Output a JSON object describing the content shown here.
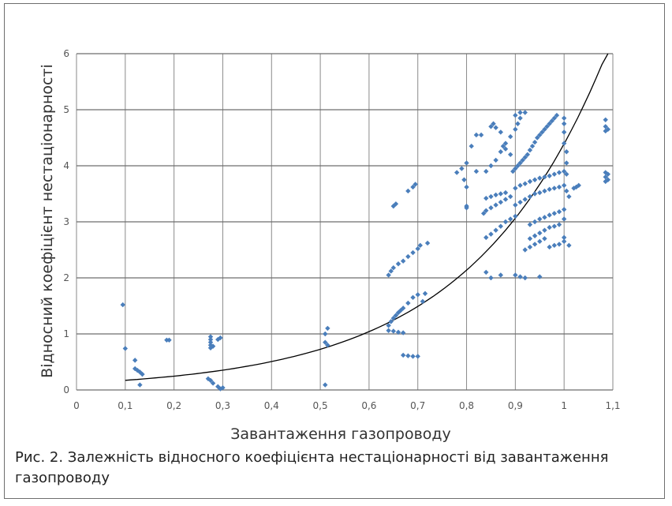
{
  "figure": {
    "caption": "Рис. 2. Залежність відносного коефіцієнта нестаціонарності від завантаження газопроводу"
  },
  "colors": {
    "points": "#4a7ebb",
    "curve": "#000000",
    "grid": "#6e6e6e"
  },
  "chart_data": {
    "type": "scatter",
    "xlabel": "Завантаження газопроводу",
    "ylabel": "Відносний коефіцієнт нестаціонарності",
    "xlim": [
      0,
      1.1
    ],
    "ylim": [
      0,
      6
    ],
    "grid": true,
    "x_ticks": [
      "0",
      "0,1",
      "0,2",
      "0,3",
      "0,4",
      "0,5",
      "0,6",
      "0,7",
      "0,8",
      "0,9",
      "1",
      "1,1"
    ],
    "y_ticks": [
      "0",
      "1",
      "2",
      "3",
      "4",
      "5",
      "6"
    ],
    "points": [
      [
        0.095,
        1.52
      ],
      [
        0.1,
        0.74
      ],
      [
        0.12,
        0.53
      ],
      [
        0.12,
        0.38
      ],
      [
        0.125,
        0.35
      ],
      [
        0.13,
        0.32
      ],
      [
        0.13,
        0.09
      ],
      [
        0.135,
        0.28
      ],
      [
        0.185,
        0.89
      ],
      [
        0.19,
        0.89
      ],
      [
        0.27,
        0.2
      ],
      [
        0.275,
        0.17
      ],
      [
        0.28,
        0.12
      ],
      [
        0.275,
        0.95
      ],
      [
        0.275,
        0.9
      ],
      [
        0.275,
        0.85
      ],
      [
        0.275,
        0.8
      ],
      [
        0.275,
        0.75
      ],
      [
        0.28,
        0.78
      ],
      [
        0.29,
        0.9
      ],
      [
        0.295,
        0.93
      ],
      [
        0.29,
        0.06
      ],
      [
        0.295,
        0.02
      ],
      [
        0.3,
        0.04
      ],
      [
        0.51,
        0.09
      ],
      [
        0.51,
        0.85
      ],
      [
        0.51,
        1.0
      ],
      [
        0.515,
        0.8
      ],
      [
        0.515,
        1.1
      ],
      [
        0.64,
        1.06
      ],
      [
        0.64,
        1.15
      ],
      [
        0.645,
        1.22
      ],
      [
        0.65,
        1.28
      ],
      [
        0.655,
        1.33
      ],
      [
        0.66,
        1.38
      ],
      [
        0.665,
        1.42
      ],
      [
        0.67,
        1.46
      ],
      [
        0.68,
        1.55
      ],
      [
        0.69,
        1.65
      ],
      [
        0.7,
        1.7
      ],
      [
        0.65,
        1.05
      ],
      [
        0.66,
        1.03
      ],
      [
        0.67,
        1.02
      ],
      [
        0.67,
        0.62
      ],
      [
        0.68,
        0.61
      ],
      [
        0.69,
        0.6
      ],
      [
        0.7,
        0.6
      ],
      [
        0.71,
        1.58
      ],
      [
        0.715,
        1.72
      ],
      [
        0.64,
        2.05
      ],
      [
        0.645,
        2.12
      ],
      [
        0.65,
        2.18
      ],
      [
        0.66,
        2.25
      ],
      [
        0.67,
        2.3
      ],
      [
        0.68,
        2.38
      ],
      [
        0.69,
        2.45
      ],
      [
        0.7,
        2.52
      ],
      [
        0.705,
        2.58
      ],
      [
        0.72,
        2.62
      ],
      [
        0.65,
        3.28
      ],
      [
        0.655,
        3.32
      ],
      [
        0.68,
        3.55
      ],
      [
        0.69,
        3.62
      ],
      [
        0.695,
        3.67
      ],
      [
        0.78,
        3.88
      ],
      [
        0.79,
        3.95
      ],
      [
        0.795,
        3.75
      ],
      [
        0.8,
        4.05
      ],
      [
        0.8,
        3.28
      ],
      [
        0.8,
        3.25
      ],
      [
        0.82,
        3.9
      ],
      [
        0.82,
        4.55
      ],
      [
        0.83,
        4.55
      ],
      [
        0.81,
        4.35
      ],
      [
        0.8,
        3.62
      ],
      [
        0.84,
        3.42
      ],
      [
        0.85,
        3.45
      ],
      [
        0.86,
        3.48
      ],
      [
        0.87,
        3.5
      ],
      [
        0.88,
        3.52
      ],
      [
        0.835,
        3.15
      ],
      [
        0.84,
        3.2
      ],
      [
        0.85,
        3.25
      ],
      [
        0.86,
        3.3
      ],
      [
        0.87,
        3.35
      ],
      [
        0.88,
        3.4
      ],
      [
        0.89,
        3.45
      ],
      [
        0.84,
        2.72
      ],
      [
        0.85,
        2.78
      ],
      [
        0.86,
        2.85
      ],
      [
        0.87,
        2.92
      ],
      [
        0.88,
        3.0
      ],
      [
        0.89,
        3.05
      ],
      [
        0.9,
        3.1
      ],
      [
        0.84,
        2.1
      ],
      [
        0.85,
        2.0
      ],
      [
        0.87,
        2.05
      ],
      [
        0.9,
        2.05
      ],
      [
        0.91,
        2.02
      ],
      [
        0.92,
        2.0
      ],
      [
        0.95,
        2.02
      ],
      [
        0.84,
        3.9
      ],
      [
        0.85,
        4.0
      ],
      [
        0.86,
        4.1
      ],
      [
        0.87,
        4.25
      ],
      [
        0.88,
        4.4
      ],
      [
        0.89,
        4.52
      ],
      [
        0.9,
        4.65
      ],
      [
        0.905,
        4.75
      ],
      [
        0.91,
        4.85
      ],
      [
        0.85,
        4.7
      ],
      [
        0.855,
        4.75
      ],
      [
        0.86,
        4.68
      ],
      [
        0.87,
        4.6
      ],
      [
        0.875,
        4.35
      ],
      [
        0.88,
        4.3
      ],
      [
        0.89,
        4.2
      ],
      [
        0.9,
        4.9
      ],
      [
        0.91,
        4.95
      ],
      [
        0.92,
        4.95
      ],
      [
        0.895,
        3.9
      ],
      [
        0.9,
        3.95
      ],
      [
        0.905,
        4.0
      ],
      [
        0.91,
        4.05
      ],
      [
        0.915,
        4.1
      ],
      [
        0.92,
        4.15
      ],
      [
        0.925,
        4.2
      ],
      [
        0.93,
        4.28
      ],
      [
        0.935,
        4.35
      ],
      [
        0.94,
        4.42
      ],
      [
        0.945,
        4.5
      ],
      [
        0.95,
        4.55
      ],
      [
        0.955,
        4.6
      ],
      [
        0.96,
        4.65
      ],
      [
        0.965,
        4.7
      ],
      [
        0.97,
        4.75
      ],
      [
        0.975,
        4.8
      ],
      [
        0.98,
        4.85
      ],
      [
        0.985,
        4.9
      ],
      [
        0.9,
        3.6
      ],
      [
        0.91,
        3.65
      ],
      [
        0.92,
        3.68
      ],
      [
        0.93,
        3.72
      ],
      [
        0.94,
        3.75
      ],
      [
        0.95,
        3.78
      ],
      [
        0.96,
        3.8
      ],
      [
        0.97,
        3.82
      ],
      [
        0.98,
        3.85
      ],
      [
        0.99,
        3.88
      ],
      [
        1.0,
        3.9
      ],
      [
        0.9,
        3.3
      ],
      [
        0.91,
        3.35
      ],
      [
        0.92,
        3.4
      ],
      [
        0.93,
        3.45
      ],
      [
        0.94,
        3.5
      ],
      [
        0.95,
        3.52
      ],
      [
        0.96,
        3.55
      ],
      [
        0.97,
        3.58
      ],
      [
        0.98,
        3.6
      ],
      [
        0.99,
        3.62
      ],
      [
        1.0,
        3.65
      ],
      [
        0.93,
        2.95
      ],
      [
        0.94,
        3.0
      ],
      [
        0.95,
        3.05
      ],
      [
        0.96,
        3.08
      ],
      [
        0.97,
        3.12
      ],
      [
        0.98,
        3.15
      ],
      [
        0.99,
        3.18
      ],
      [
        1.0,
        3.22
      ],
      [
        0.92,
        2.5
      ],
      [
        0.93,
        2.55
      ],
      [
        0.94,
        2.6
      ],
      [
        0.95,
        2.65
      ],
      [
        0.96,
        2.7
      ],
      [
        0.97,
        2.55
      ],
      [
        0.98,
        2.58
      ],
      [
        0.99,
        2.6
      ],
      [
        1.0,
        2.65
      ],
      [
        0.93,
        2.7
      ],
      [
        0.94,
        2.75
      ],
      [
        0.95,
        2.8
      ],
      [
        0.96,
        2.85
      ],
      [
        0.97,
        2.9
      ],
      [
        0.98,
        2.92
      ],
      [
        0.99,
        2.95
      ],
      [
        1.0,
        4.6
      ],
      [
        1.0,
        4.4
      ],
      [
        1.005,
        4.25
      ],
      [
        1.005,
        4.05
      ],
      [
        1.005,
        3.85
      ],
      [
        1.005,
        3.55
      ],
      [
        1.01,
        3.45
      ],
      [
        1.01,
        2.58
      ],
      [
        1.0,
        2.72
      ],
      [
        1.0,
        3.05
      ],
      [
        1.0,
        4.85
      ],
      [
        1.0,
        4.75
      ],
      [
        1.02,
        3.6
      ],
      [
        1.025,
        3.62
      ],
      [
        1.03,
        3.65
      ],
      [
        1.085,
        4.82
      ],
      [
        1.085,
        4.7
      ],
      [
        1.085,
        4.62
      ],
      [
        1.085,
        3.72
      ],
      [
        1.085,
        3.8
      ],
      [
        1.085,
        3.88
      ],
      [
        1.09,
        4.65
      ],
      [
        1.09,
        3.75
      ],
      [
        1.09,
        3.85
      ]
    ],
    "trendline": {
      "type": "exponential",
      "a": 0.12,
      "b": 3.6,
      "x_range": [
        0.1,
        1.09
      ]
    }
  }
}
